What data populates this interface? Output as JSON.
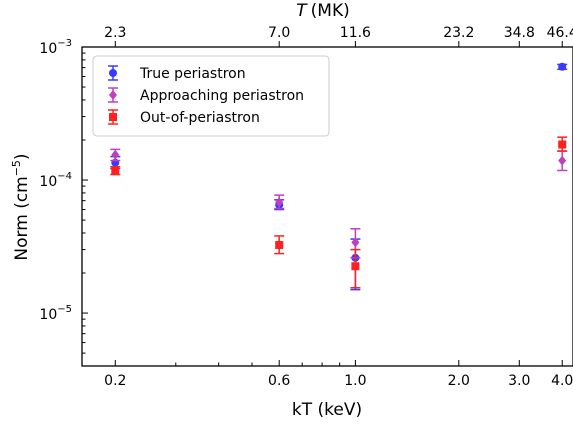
{
  "chart_data": {
    "type": "scatter",
    "xlabel": "kT (keV)",
    "xlabel_top": "T",
    "xlabel_top_unit": "(MK)",
    "ylabel": "Norm (cm",
    "ylabel_exp": "−5",
    "ylabel_close": ")",
    "xscale": "log",
    "yscale": "log",
    "xlim": [
      0.16,
      4.3
    ],
    "ylim": [
      4e-06,
      0.001
    ],
    "x_ticks": [
      {
        "value": 0.2,
        "label": "0.2"
      },
      {
        "value": 0.6,
        "label": "0.6"
      },
      {
        "value": 1.0,
        "label": "1.0"
      },
      {
        "value": 2.0,
        "label": "2.0"
      },
      {
        "value": 3.0,
        "label": "3.0"
      },
      {
        "value": 4.0,
        "label": "4.0"
      }
    ],
    "top_ticks": [
      {
        "value": 0.2,
        "label": "2.3"
      },
      {
        "value": 0.6,
        "label": "7.0"
      },
      {
        "value": 1.0,
        "label": "11.6"
      },
      {
        "value": 2.0,
        "label": "23.2"
      },
      {
        "value": 3.0,
        "label": "34.8"
      },
      {
        "value": 4.0,
        "label": "46.4"
      }
    ],
    "y_ticks": [
      {
        "value": 1e-05,
        "base": "10",
        "exp": "−5"
      },
      {
        "value": 0.0001,
        "base": "10",
        "exp": "−4"
      },
      {
        "value": 0.001,
        "base": "10",
        "exp": "−3"
      }
    ],
    "legend_position": "top-left",
    "series": [
      {
        "name": "True periastron",
        "color": "#3a3aff",
        "marker": "circle",
        "points": [
          {
            "x": 0.2,
            "y": 0.000135,
            "ylo": 0.000122,
            "yhi": 0.00015
          },
          {
            "x": 0.6,
            "y": 6.5e-05,
            "ylo": 6e-05,
            "yhi": 7.1e-05
          },
          {
            "x": 1.0,
            "y": 2.6e-05,
            "ylo": 1.5e-05,
            "yhi": 3.6e-05
          },
          {
            "x": 4.0,
            "y": 0.00071,
            "ylo": 0.00068,
            "yhi": 0.00074
          }
        ]
      },
      {
        "name": "Approaching periastron",
        "color": "#bf40bf",
        "marker": "diamond",
        "points": [
          {
            "x": 0.2,
            "y": 0.000155,
            "ylo": 0.00014,
            "yhi": 0.00017
          },
          {
            "x": 0.6,
            "y": 6.8e-05,
            "ylo": 6.1e-05,
            "yhi": 7.7e-05
          },
          {
            "x": 1.0,
            "y": 3.4e-05,
            "ylo": 2.6e-05,
            "yhi": 4.3e-05
          },
          {
            "x": 4.0,
            "y": 0.00014,
            "ylo": 0.000118,
            "yhi": 0.000165
          }
        ]
      },
      {
        "name": "Out-of-periastron",
        "color": "#ff2020",
        "marker": "square",
        "points": [
          {
            "x": 0.2,
            "y": 0.000118,
            "ylo": 0.00011,
            "yhi": 0.000126
          },
          {
            "x": 0.6,
            "y": 3.25e-05,
            "ylo": 2.8e-05,
            "yhi": 3.8e-05
          },
          {
            "x": 1.0,
            "y": 2.25e-05,
            "ylo": 1.55e-05,
            "yhi": 3e-05
          },
          {
            "x": 4.0,
            "y": 0.000185,
            "ylo": 0.000165,
            "yhi": 0.00021
          }
        ]
      }
    ]
  }
}
